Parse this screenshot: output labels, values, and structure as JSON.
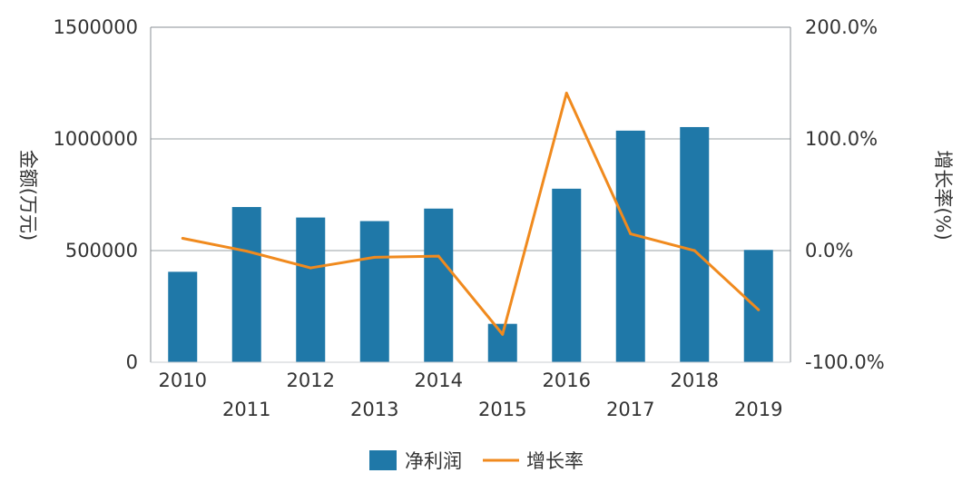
{
  "chart_data": {
    "type": "bar",
    "categories": [
      "2010",
      "2011",
      "2012",
      "2013",
      "2014",
      "2015",
      "2016",
      "2017",
      "2018",
      "2019"
    ],
    "series": [
      {
        "name": "净利润",
        "type": "bar",
        "axis": "left",
        "color": "#1f78a8",
        "values": [
          405000,
          695000,
          648000,
          632000,
          688000,
          172000,
          777000,
          1037000,
          1053000,
          503000
        ]
      },
      {
        "name": "增长率",
        "type": "line",
        "axis": "right",
        "color": "#f08a1e",
        "values": [
          11.0,
          -0.5,
          -15.5,
          -6.0,
          -5.0,
          -75.0,
          141.0,
          15.0,
          0.0,
          -53.0
        ]
      }
    ],
    "ylabel": "金额(万元)",
    "y2label": "增长率(%)",
    "ylim": [
      0,
      1500000
    ],
    "y2lim": [
      -100,
      200
    ],
    "yticks": [
      "0",
      "500000",
      "1000000",
      "1500000"
    ],
    "y2ticks": [
      "-100.0%",
      "0.0%",
      "100.0%",
      "200.0%"
    ],
    "grid": true,
    "legend_position": "bottom-center"
  }
}
